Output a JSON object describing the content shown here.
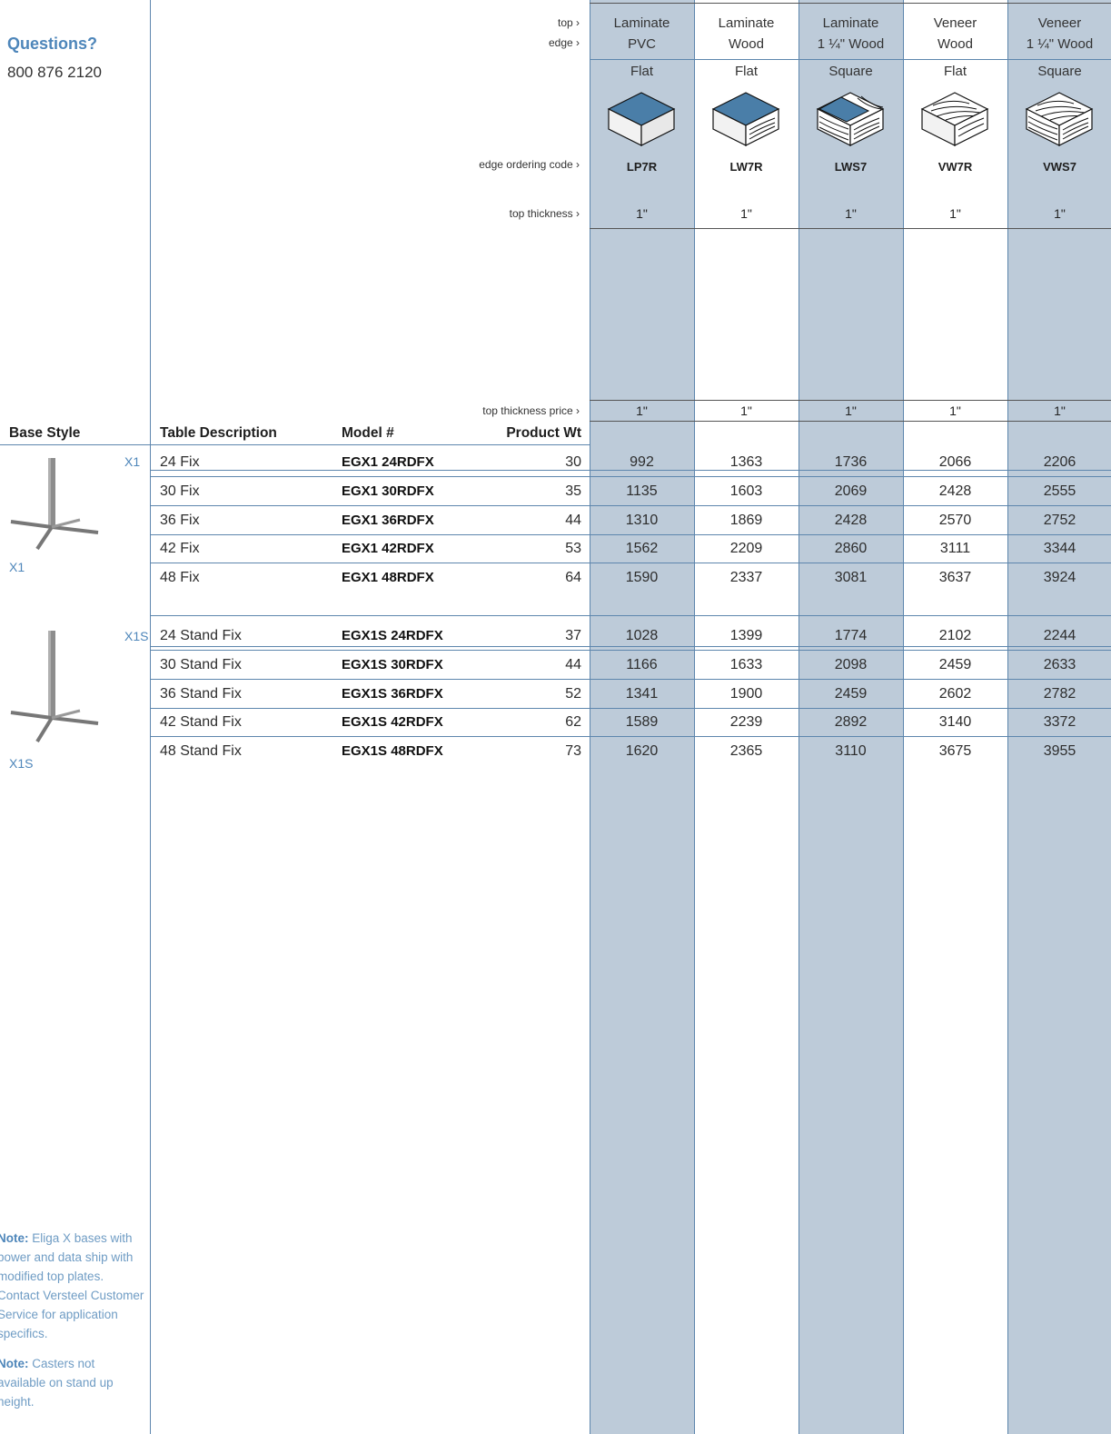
{
  "contact": {
    "title": "Questions?",
    "phone": "800 876 2120"
  },
  "row_labels": {
    "top": "top ›",
    "edge": "edge ›",
    "edge_code": "edge ordering code ›",
    "top_thickness": "top thickness ›",
    "top_thickness_price": "top thickness price ›"
  },
  "columns": [
    {
      "top": "Laminate",
      "edge": "PVC",
      "profile": "Flat",
      "code": "LP7R",
      "thickness": "1\"",
      "price_thickness": "1\"",
      "icon": "laminate-flat-edge-icon"
    },
    {
      "top": "Laminate",
      "edge": "Wood",
      "profile": "Flat",
      "code": "LW7R",
      "thickness": "1\"",
      "price_thickness": "1\"",
      "icon": "laminate-wood-edge-icon"
    },
    {
      "top": "Laminate",
      "edge": "1 ¼\" Wood",
      "profile": "Square",
      "code": "LWS7",
      "thickness": "1\"",
      "price_thickness": "1\"",
      "icon": "laminate-square-wood-edge-icon"
    },
    {
      "top": "Veneer",
      "edge": "Wood",
      "profile": "Flat",
      "code": "VW7R",
      "thickness": "1\"",
      "price_thickness": "1\"",
      "icon": "veneer-flat-edge-icon"
    },
    {
      "top": "Veneer",
      "edge": "1 ¼\" Wood",
      "profile": "Square",
      "code": "VWS7",
      "thickness": "1\"",
      "price_thickness": "1\"",
      "icon": "veneer-square-edge-icon"
    }
  ],
  "table_headers": {
    "base_style": "Base Style",
    "description": "Table Description",
    "model": "Model #",
    "weight": "Product Wt"
  },
  "groups": [
    {
      "tag": "X1",
      "label": "X1",
      "icon": "x1-base-icon",
      "rows": [
        {
          "desc": "24 Fix",
          "model": "EGX1 24RDFX",
          "wt": "30",
          "prices": [
            "992",
            "1363",
            "1736",
            "2066",
            "2206"
          ]
        },
        {
          "desc": "30 Fix",
          "model": "EGX1 30RDFX",
          "wt": "35",
          "prices": [
            "1135",
            "1603",
            "2069",
            "2428",
            "2555"
          ]
        },
        {
          "desc": "36 Fix",
          "model": "EGX1 36RDFX",
          "wt": "44",
          "prices": [
            "1310",
            "1869",
            "2428",
            "2570",
            "2752"
          ]
        },
        {
          "desc": "42 Fix",
          "model": "EGX1 42RDFX",
          "wt": "53",
          "prices": [
            "1562",
            "2209",
            "2860",
            "3111",
            "3344"
          ]
        },
        {
          "desc": "48 Fix",
          "model": "EGX1 48RDFX",
          "wt": "64",
          "prices": [
            "1590",
            "2337",
            "3081",
            "3637",
            "3924"
          ]
        }
      ]
    },
    {
      "tag": "X1S",
      "label": "X1S",
      "icon": "x1s-base-icon",
      "rows": [
        {
          "desc": "24 Stand Fix",
          "model": "EGX1S 24RDFX",
          "wt": "37",
          "prices": [
            "1028",
            "1399",
            "1774",
            "2102",
            "2244"
          ]
        },
        {
          "desc": "30 Stand Fix",
          "model": "EGX1S 30RDFX",
          "wt": "44",
          "prices": [
            "1166",
            "1633",
            "2098",
            "2459",
            "2633"
          ]
        },
        {
          "desc": "36 Stand Fix",
          "model": "EGX1S 36RDFX",
          "wt": "52",
          "prices": [
            "1341",
            "1900",
            "2459",
            "2602",
            "2782"
          ]
        },
        {
          "desc": "42 Stand Fix",
          "model": "EGX1S 42RDFX",
          "wt": "62",
          "prices": [
            "1589",
            "2239",
            "2892",
            "3140",
            "3372"
          ]
        },
        {
          "desc": "48 Stand Fix",
          "model": "EGX1S 48RDFX",
          "wt": "73",
          "prices": [
            "1620",
            "2365",
            "3110",
            "3675",
            "3955"
          ]
        }
      ]
    }
  ],
  "notes": [
    {
      "label": "Note:",
      "text": " Eliga X bases with power and data ship with modified top plates. Contact Versteel Customer Service for application specifics."
    },
    {
      "label": "Note:",
      "text": " Casters not available on stand up height."
    }
  ],
  "colors": {
    "accent": "#4e86ba",
    "shade": "#bdcbd9",
    "line": "#5d86ad"
  }
}
